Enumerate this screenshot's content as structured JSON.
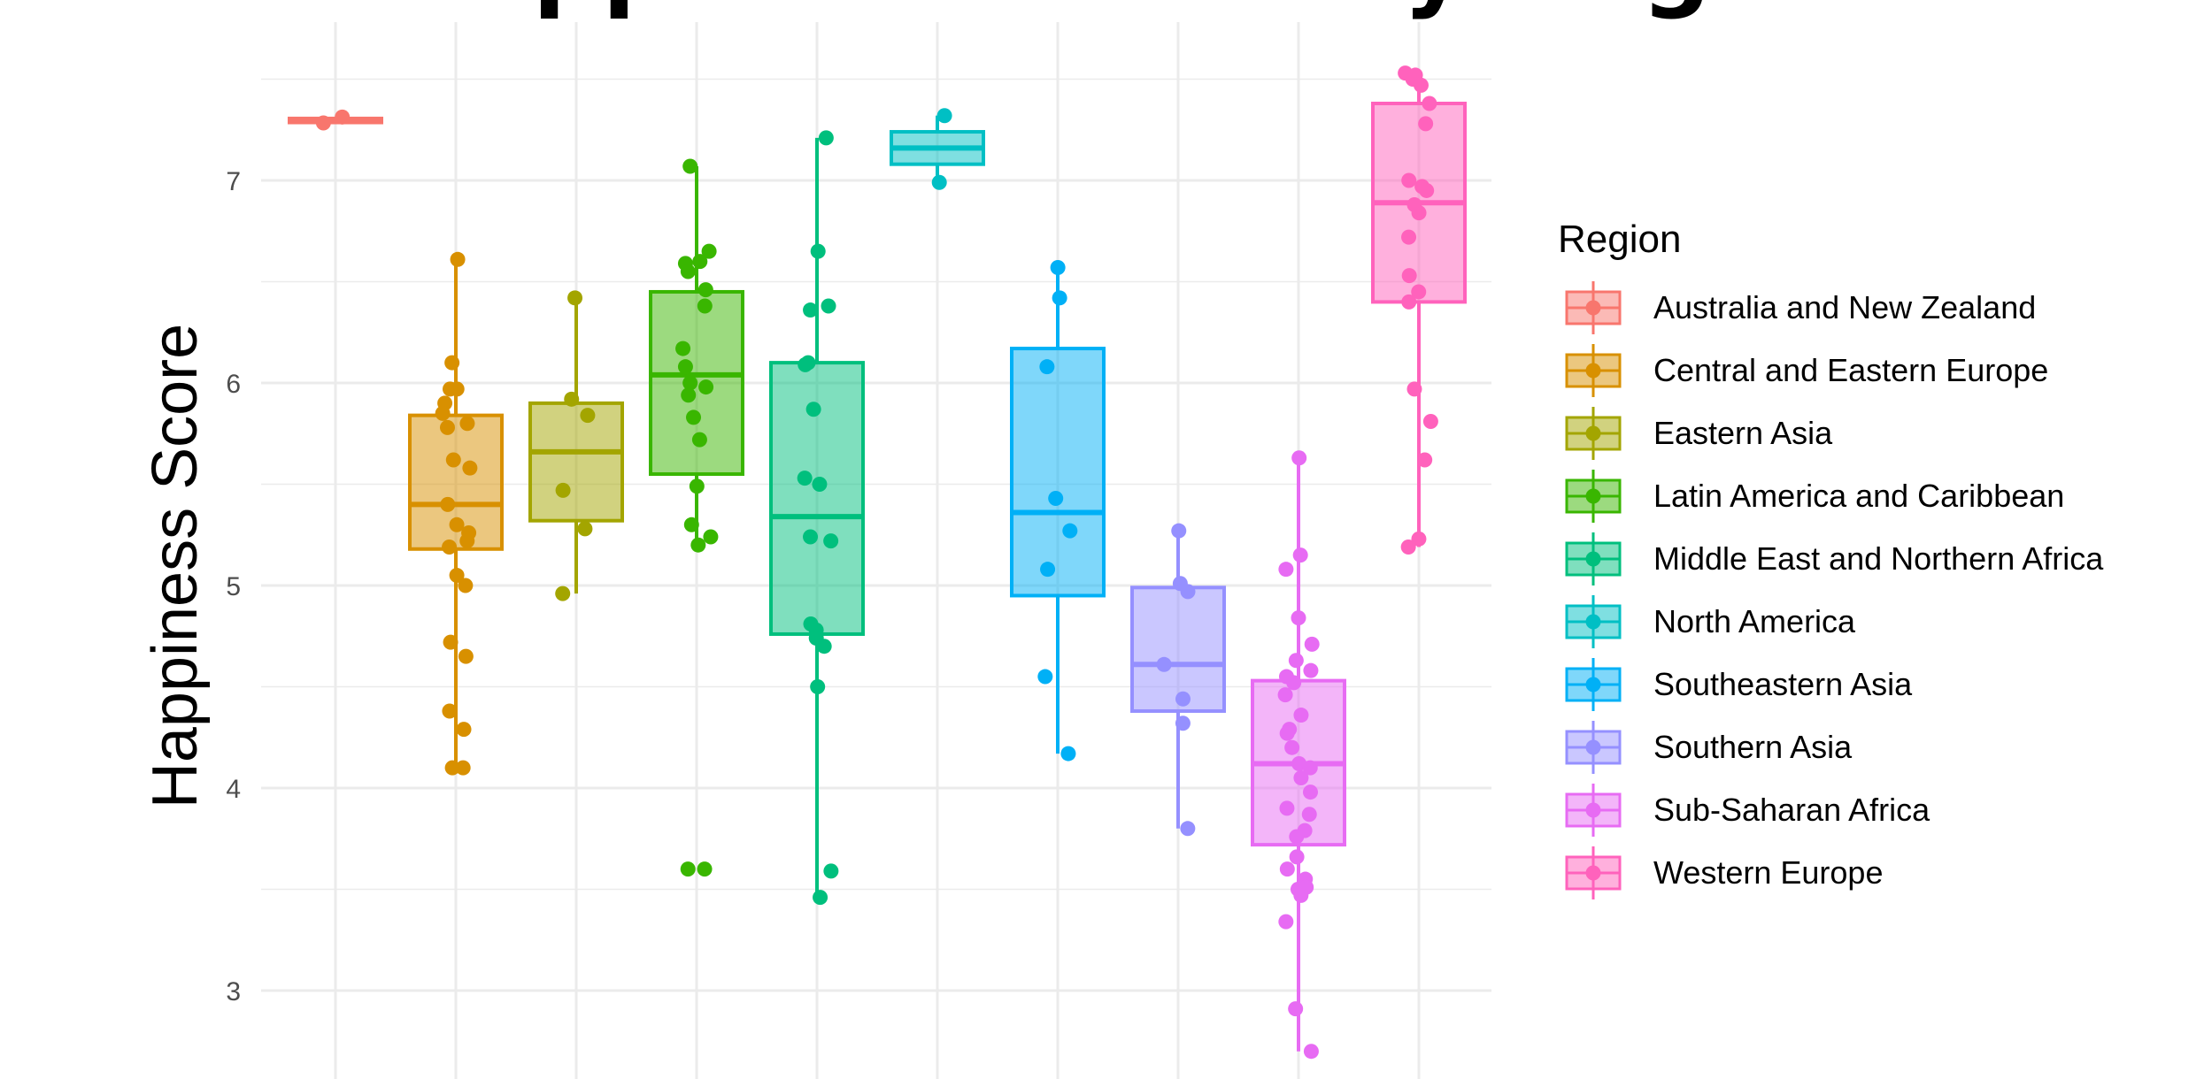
{
  "chart_data": {
    "type": "box",
    "title": "Happiness Score by Region",
    "xlabel": "",
    "ylabel": "Happiness Score",
    "ylim": [
      2.7,
      7.55
    ],
    "y_ticks": [
      3,
      4,
      5,
      6,
      7
    ],
    "grid": true,
    "legend_title": "Region",
    "legend_position": "right",
    "series": [
      {
        "name": "Australia and New Zealand",
        "color": "#F8766D",
        "box": {
          "q1": 7.286,
          "median": 7.296,
          "q3": 7.306,
          "min": 7.284,
          "max": 7.313
        },
        "points": [
          7.313,
          7.284
        ]
      },
      {
        "name": "Central and Eastern Europe",
        "color": "#D89000",
        "box": {
          "q1": 5.18,
          "median": 5.4,
          "q3": 5.84,
          "min": 4.1,
          "max": 6.61
        },
        "points": [
          6.61,
          6.1,
          5.97,
          5.97,
          5.9,
          5.85,
          5.8,
          5.78,
          5.62,
          5.58,
          5.4,
          5.3,
          5.26,
          5.22,
          5.19,
          5.05,
          5.0,
          4.72,
          4.65,
          4.38,
          4.29,
          4.1,
          4.1
        ]
      },
      {
        "name": "Eastern Asia",
        "color": "#A3A500",
        "box": {
          "q1": 5.32,
          "median": 5.66,
          "q3": 5.9,
          "min": 4.96,
          "max": 6.42
        },
        "points": [
          6.42,
          5.92,
          5.84,
          5.47,
          5.28,
          4.96
        ]
      },
      {
        "name": "Latin America and Caribbean",
        "color": "#39B600",
        "box": {
          "q1": 5.55,
          "median": 6.04,
          "q3": 6.45,
          "min": 5.18,
          "max": 7.07
        },
        "points": [
          7.07,
          6.65,
          6.6,
          6.59,
          6.55,
          6.46,
          6.38,
          6.17,
          6.08,
          6.0,
          5.98,
          5.94,
          5.83,
          5.72,
          5.49,
          5.3,
          5.24,
          5.2,
          3.6,
          3.6
        ]
      },
      {
        "name": "Middle East and Northern Africa",
        "color": "#00BF7D",
        "box": {
          "q1": 4.76,
          "median": 5.34,
          "q3": 6.1,
          "min": 3.46,
          "max": 7.21
        },
        "points": [
          7.21,
          6.65,
          6.38,
          6.36,
          6.1,
          6.09,
          5.87,
          5.53,
          5.5,
          5.24,
          5.22,
          4.81,
          4.78,
          4.74,
          4.7,
          4.5,
          3.59,
          3.46
        ]
      },
      {
        "name": "North America",
        "color": "#00BFC4",
        "box": {
          "q1": 7.08,
          "median": 7.16,
          "q3": 7.24,
          "min": 6.99,
          "max": 7.32
        },
        "points": [
          7.32,
          6.99
        ]
      },
      {
        "name": "Southeastern Asia",
        "color": "#00B0F6",
        "box": {
          "q1": 4.95,
          "median": 5.36,
          "q3": 6.17,
          "min": 4.17,
          "max": 6.57
        },
        "points": [
          6.57,
          6.42,
          6.08,
          5.43,
          5.27,
          5.08,
          4.55,
          4.17
        ]
      },
      {
        "name": "Southern Asia",
        "color": "#9590FF",
        "box": {
          "q1": 4.38,
          "median": 4.61,
          "q3": 4.99,
          "min": 3.8,
          "max": 5.27
        },
        "points": [
          5.27,
          5.01,
          4.97,
          4.61,
          4.44,
          4.32,
          3.8
        ]
      },
      {
        "name": "Sub-Saharan Africa",
        "color": "#E76BF3",
        "box": {
          "q1": 3.72,
          "median": 4.12,
          "q3": 4.53,
          "min": 2.7,
          "max": 5.63
        },
        "points": [
          5.63,
          5.15,
          5.08,
          4.84,
          4.71,
          4.63,
          4.58,
          4.55,
          4.52,
          4.46,
          4.36,
          4.29,
          4.27,
          4.2,
          4.12,
          4.1,
          4.05,
          3.98,
          3.9,
          3.87,
          3.79,
          3.76,
          3.66,
          3.6,
          3.55,
          3.51,
          3.5,
          3.47,
          3.34,
          2.91,
          2.7
        ]
      },
      {
        "name": "Western Europe",
        "color": "#FF62BC",
        "box": {
          "q1": 6.4,
          "median": 6.89,
          "q3": 7.38,
          "min": 5.19,
          "max": 7.53
        },
        "points": [
          7.53,
          7.52,
          7.5,
          7.47,
          7.38,
          7.28,
          7.0,
          6.97,
          6.95,
          6.88,
          6.84,
          6.72,
          6.53,
          6.45,
          6.4,
          5.97,
          5.81,
          5.62,
          5.23,
          5.19
        ]
      }
    ]
  }
}
